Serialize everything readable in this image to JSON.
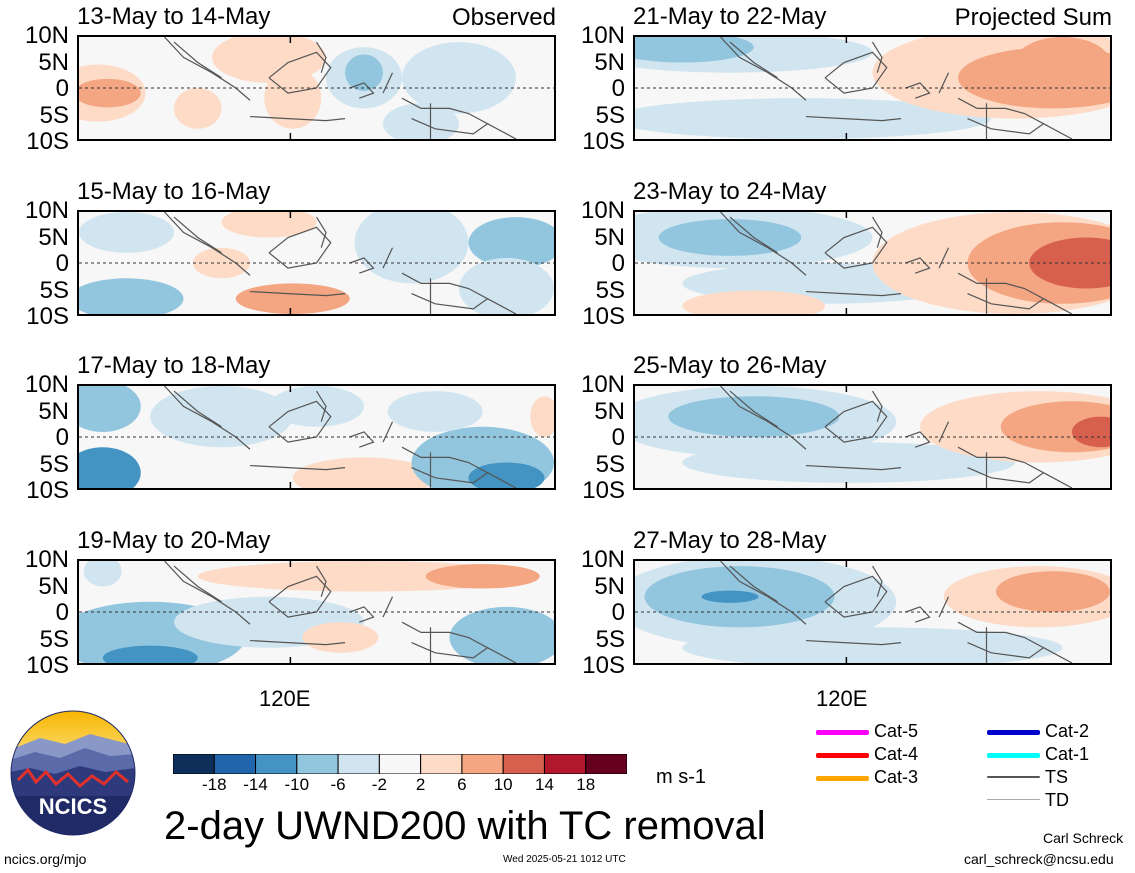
{
  "chart_data": [
    {
      "type": "heatmap",
      "title": "13-May to 14-May",
      "label": "Observed",
      "yticks": [
        "10N",
        "5N",
        "0",
        "5S",
        "10S"
      ],
      "xtick": "120E",
      "ylim": [
        -10,
        10
      ]
    },
    {
      "type": "heatmap",
      "title": "15-May to 16-May",
      "label": "",
      "yticks": [
        "10N",
        "5N",
        "0",
        "5S",
        "10S"
      ],
      "xtick": "120E",
      "ylim": [
        -10,
        10
      ]
    },
    {
      "type": "heatmap",
      "title": "17-May to 18-May",
      "label": "",
      "yticks": [
        "10N",
        "5N",
        "0",
        "5S",
        "10S"
      ],
      "xtick": "120E",
      "ylim": [
        -10,
        10
      ]
    },
    {
      "type": "heatmap",
      "title": "19-May to 20-May",
      "label": "",
      "yticks": [
        "10N",
        "5N",
        "0",
        "5S",
        "10S"
      ],
      "xtick": "120E",
      "ylim": [
        -10,
        10
      ]
    },
    {
      "type": "heatmap",
      "title": "21-May to 22-May",
      "label": "Projected Sum",
      "yticks": [
        "10N",
        "5N",
        "0",
        "5S",
        "10S"
      ],
      "xtick": "120E",
      "ylim": [
        -10,
        10
      ]
    },
    {
      "type": "heatmap",
      "title": "23-May to 24-May",
      "label": "",
      "yticks": [
        "10N",
        "5N",
        "0",
        "5S",
        "10S"
      ],
      "xtick": "120E",
      "ylim": [
        -10,
        10
      ]
    },
    {
      "type": "heatmap",
      "title": "25-May to 26-May",
      "label": "",
      "yticks": [
        "10N",
        "5N",
        "0",
        "5S",
        "10S"
      ],
      "xtick": "120E",
      "ylim": [
        -10,
        10
      ]
    },
    {
      "type": "heatmap",
      "title": "27-May to 28-May",
      "label": "",
      "yticks": [
        "10N",
        "5N",
        "0",
        "5S",
        "10S"
      ],
      "xtick": "120E",
      "ylim": [
        -10,
        10
      ]
    }
  ],
  "bottom_xtick_left": "120E",
  "bottom_xtick_right": "120E",
  "colorbar": {
    "colors": [
      "#0e2f5a",
      "#2166ac",
      "#4393c3",
      "#92c5de",
      "#d1e5f0",
      "#f7f7f7",
      "#fddbc7",
      "#f4a582",
      "#d6604d",
      "#b2182b",
      "#67001f"
    ],
    "ticks": [
      "-18",
      "-14",
      "-10",
      "-6",
      "-2",
      "2",
      "6",
      "10",
      "14",
      "18"
    ],
    "units": "m s-1"
  },
  "main_title": "2-day UWND200 with TC removal",
  "legend": [
    {
      "label": "Cat-5",
      "color": "#ff00ff"
    },
    {
      "label": "Cat-4",
      "color": "#ff0000"
    },
    {
      "label": "Cat-3",
      "color": "#ffa500"
    },
    {
      "label": "Cat-2",
      "color": "#0000cd"
    },
    {
      "label": "Cat-1",
      "color": "#00ffff"
    },
    {
      "label": "TS",
      "color": "#555555"
    },
    {
      "label": "TD",
      "color": "#aaaaaa"
    }
  ],
  "logo_text": "NCICS",
  "footer": {
    "website": "ncics.org/mjo",
    "timestamp": "Wed 2025-05-21 1012 UTC",
    "author": "Carl Schreck",
    "email": "carl_schreck@ncsu.edu"
  }
}
